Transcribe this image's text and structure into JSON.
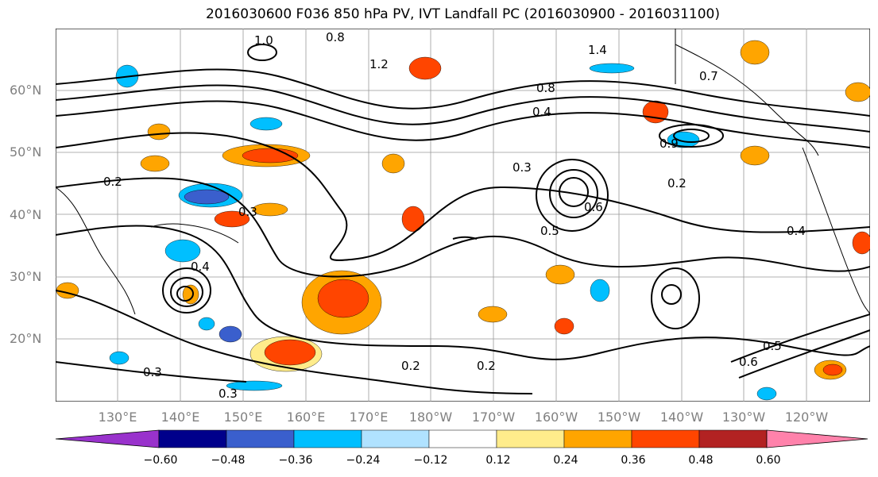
{
  "title": "2016030600 F036 850 hPa PV, IVT Landfall PC (2016030900 - 2016031100)",
  "lat_labels": [
    "60°N",
    "50°N",
    "40°N",
    "30°N",
    "20°N"
  ],
  "lon_labels": [
    "130°E",
    "140°E",
    "150°E",
    "160°E",
    "170°E",
    "180°W",
    "170°W",
    "160°W",
    "150°W",
    "140°W",
    "130°W",
    "120°W"
  ],
  "colorbar": {
    "ticks": [
      "−0.60",
      "−0.48",
      "−0.36",
      "−0.24",
      "−0.12",
      "0.12",
      "0.24",
      "0.36",
      "0.48",
      "0.60"
    ],
    "colors": [
      "#9932CC",
      "#00008B",
      "#3A5FCD",
      "#00BFFF",
      "#B0E2FF",
      "#FFFFFF",
      "#FFEC8B",
      "#FFA500",
      "#FF4500",
      "#B22222",
      "#FF82AB"
    ]
  },
  "contour_labels": [
    "1.0",
    "0.8",
    "1.2",
    "1.4",
    "0.8",
    "0.4",
    "0.3",
    "0.2",
    "0.3",
    "0.4",
    "0.5",
    "0.6",
    "0.2",
    "0.3",
    "0.2",
    "0.3",
    "0.4",
    "0.5",
    "0.6",
    "0.2",
    "0.7",
    "0.9"
  ]
}
